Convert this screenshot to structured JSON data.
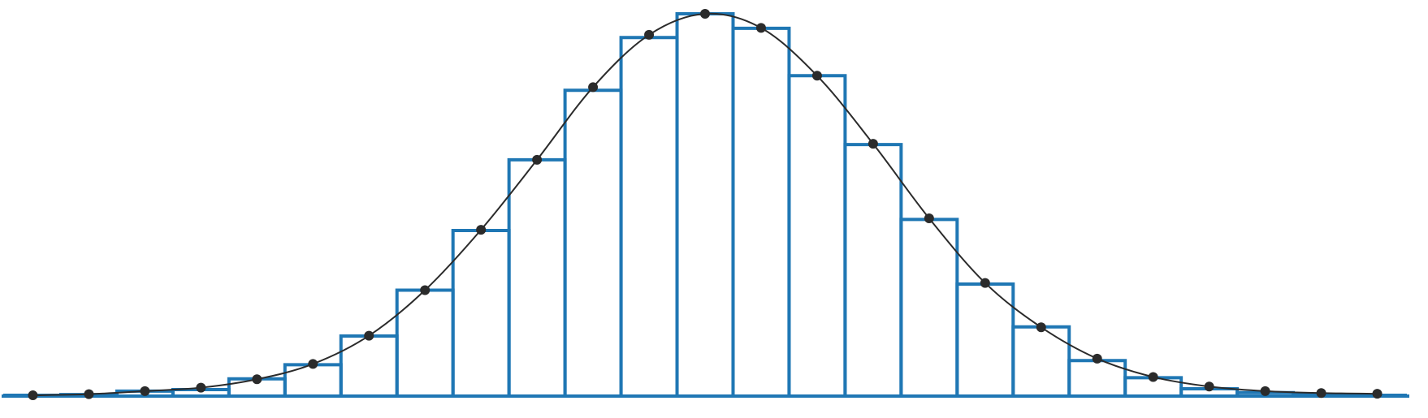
{
  "colors": {
    "bar_stroke": "#1f77b4",
    "curve": "#2b2b2b",
    "point": "#2b2b2b",
    "background": "#ffffff"
  },
  "chart_data": {
    "type": "bar",
    "subtype": "histogram-with-density-curve",
    "title": "",
    "xlabel": "",
    "ylabel": "",
    "axes_visible": false,
    "grid": false,
    "legend": "none",
    "ylim": [
      0,
      1
    ],
    "bin_count": 25,
    "series": [
      {
        "kind": "histogram-bars",
        "style": "outline",
        "values": [
          0.002,
          0.004,
          0.013,
          0.017,
          0.045,
          0.082,
          0.157,
          0.277,
          0.433,
          0.618,
          0.8,
          0.938,
          1.0,
          0.962,
          0.838,
          0.658,
          0.462,
          0.293,
          0.181,
          0.093,
          0.048,
          0.019,
          0.009,
          0.004,
          0.002
        ]
      },
      {
        "kind": "density-curve-with-points",
        "values": [
          0.002,
          0.005,
          0.013,
          0.022,
          0.044,
          0.084,
          0.158,
          0.277,
          0.435,
          0.618,
          0.808,
          0.945,
          1.0,
          0.963,
          0.838,
          0.66,
          0.465,
          0.296,
          0.18,
          0.098,
          0.05,
          0.025,
          0.013,
          0.008,
          0.006
        ]
      }
    ]
  }
}
